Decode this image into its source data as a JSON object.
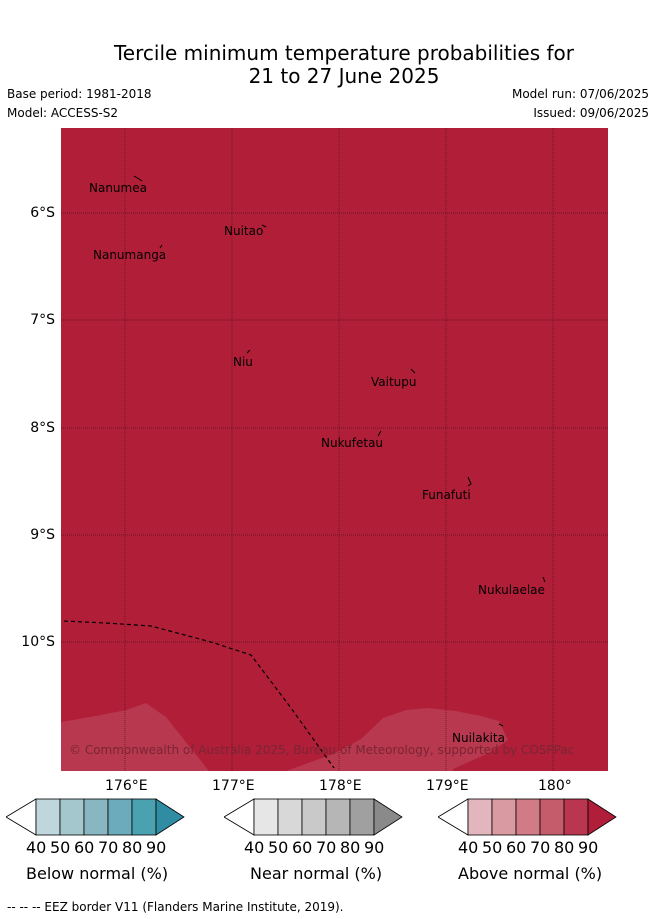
{
  "title_line1": "Tercile minimum temperature probabilities for",
  "title_line2": "21 to 27 June 2025",
  "base_period": "Base period: 1981-2018",
  "model": "Model: ACCESS-S2",
  "model_run": "Model run: 07/06/2025",
  "issued": "Issued: 09/06/2025",
  "copyright": "© Commonwealth of Australia 2025, Bureau of Meteorology, supported by COSPPac",
  "lat_labels": [
    "6°S",
    "7°S",
    "8°S",
    "9°S",
    "10°S"
  ],
  "lon_labels": [
    "176°E",
    "177°E",
    "178°E",
    "179°E",
    "180°"
  ],
  "places": [
    {
      "name": "Nanumea",
      "lon": 176.15,
      "lat": -5.67
    },
    {
      "name": "Nuitao",
      "lon": 177.3,
      "lat": -6.11
    },
    {
      "name": "Nanumanga",
      "lon": 176.33,
      "lat": -6.29
    },
    {
      "name": "Niu",
      "lon": 177.15,
      "lat": -7.29
    },
    {
      "name": "Vaitupu",
      "lon": 178.68,
      "lat": -7.48
    },
    {
      "name": "Nukufetau",
      "lon": 178.4,
      "lat": -8.03
    },
    {
      "name": "Funafuti",
      "lon": 179.2,
      "lat": -8.5
    },
    {
      "name": "Nukulaelae",
      "lon": 179.85,
      "lat": -9.38
    },
    {
      "name": "Nuilakita",
      "lon": 179.47,
      "lat": -10.78
    }
  ],
  "colorbars": [
    {
      "label": "Below normal (%)",
      "ticks": [
        "40",
        "50",
        "60",
        "70",
        "80",
        "90"
      ],
      "colors": [
        "#bed6dc",
        "#a4c7cd",
        "#88b7c2",
        "#6cabbb",
        "#4aa1b0",
        "#2f8ca2"
      ]
    },
    {
      "label": "Near normal (%)",
      "ticks": [
        "40",
        "50",
        "60",
        "70",
        "80",
        "90"
      ],
      "colors": [
        "#e6e6e6",
        "#d8d8d8",
        "#c9c9c9",
        "#b6b6b6",
        "#a0a0a0",
        "#8a8a8a"
      ]
    },
    {
      "label": "Above normal (%)",
      "ticks": [
        "40",
        "50",
        "60",
        "70",
        "80",
        "90"
      ],
      "colors": [
        "#e3b6bd",
        "#d99aa2",
        "#d07b85",
        "#c55c6b",
        "#ba3550",
        "#b01e3a"
      ]
    }
  ],
  "colors": {
    "above_normal_main": "#b01e37",
    "above_normal_light": "#b7384f"
  },
  "footer": "--  --  -- EEZ border V11 (Flanders Marine Institute, 2019)."
}
